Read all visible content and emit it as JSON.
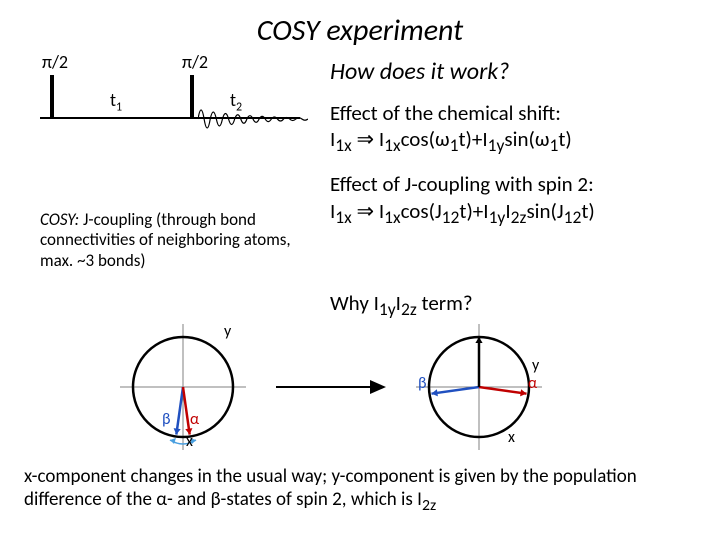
{
  "title": "COSY experiment",
  "pulse": {
    "p1_label": "π/2",
    "p2_label": "π/2",
    "t1_label": "t",
    "t1_sub": "1",
    "t2_label": "t",
    "t2_sub": "2",
    "baseline_color": "#000000",
    "pulse_color": "#000000",
    "fid": {
      "stroke": "#000000",
      "stroke_width": 1.2,
      "periods": 9,
      "amplitude_start": 18,
      "decay": 0.78
    }
  },
  "question": "How does it work?",
  "effect1": {
    "line1": "Effect of the chemical shift:",
    "line2_html": "I<sub>1x</sub> &rArr; I<sub>1x</sub>cos(&omega;<sub>1</sub>t)+I<sub>1y</sub>sin(&omega;<sub>1</sub>t)"
  },
  "effect2": {
    "line1": "Effect of J-coupling with spin 2:",
    "line2_html": "I<sub>1x</sub> &rArr; I<sub>1x</sub>cos(J<sub>12</sub>t)+I<sub>1y</sub>I<sub>2z</sub>sin(J<sub>12</sub>t)"
  },
  "caption": {
    "head": "COSY:",
    "body": " J-coupling (through bond connectivities of neighboring atoms, max. ~3 bonds)"
  },
  "why_html": "Why I<sub>1y</sub>I<sub>2z</sub> term?",
  "circle_style": {
    "r": 50,
    "stroke": "#000000",
    "stroke_width": 2.5,
    "axis_color": "#808080",
    "axis_width": 1,
    "alpha_color": "#c00000",
    "beta_color": "#2050c0",
    "curve_color": "#4aa0e0",
    "arrowhead_size": 6
  },
  "circle1": {
    "vectors": [
      {
        "angle_deg": 98,
        "length": 48,
        "color_key": "beta_color"
      },
      {
        "angle_deg": 82,
        "length": 48,
        "color_key": "alpha_color"
      }
    ],
    "labels": {
      "y": "y",
      "x": "x",
      "alpha": "α",
      "beta": "β"
    }
  },
  "circle2": {
    "vectors": [
      {
        "angle_deg": 172,
        "length": 48,
        "color_key": "beta_color"
      },
      {
        "angle_deg": 8,
        "length": 48,
        "color_key": "alpha_color"
      },
      {
        "angle_deg": -90,
        "length": 50,
        "color_key": "stroke"
      }
    ],
    "labels": {
      "y": "y",
      "x": "x",
      "alpha": "α",
      "beta": "β"
    }
  },
  "bottom_html": "x-component changes in the usual way; y-component is given by the population difference of the &alpha;- and &beta;-states of spin 2, which is I<sub>2z</sub>"
}
